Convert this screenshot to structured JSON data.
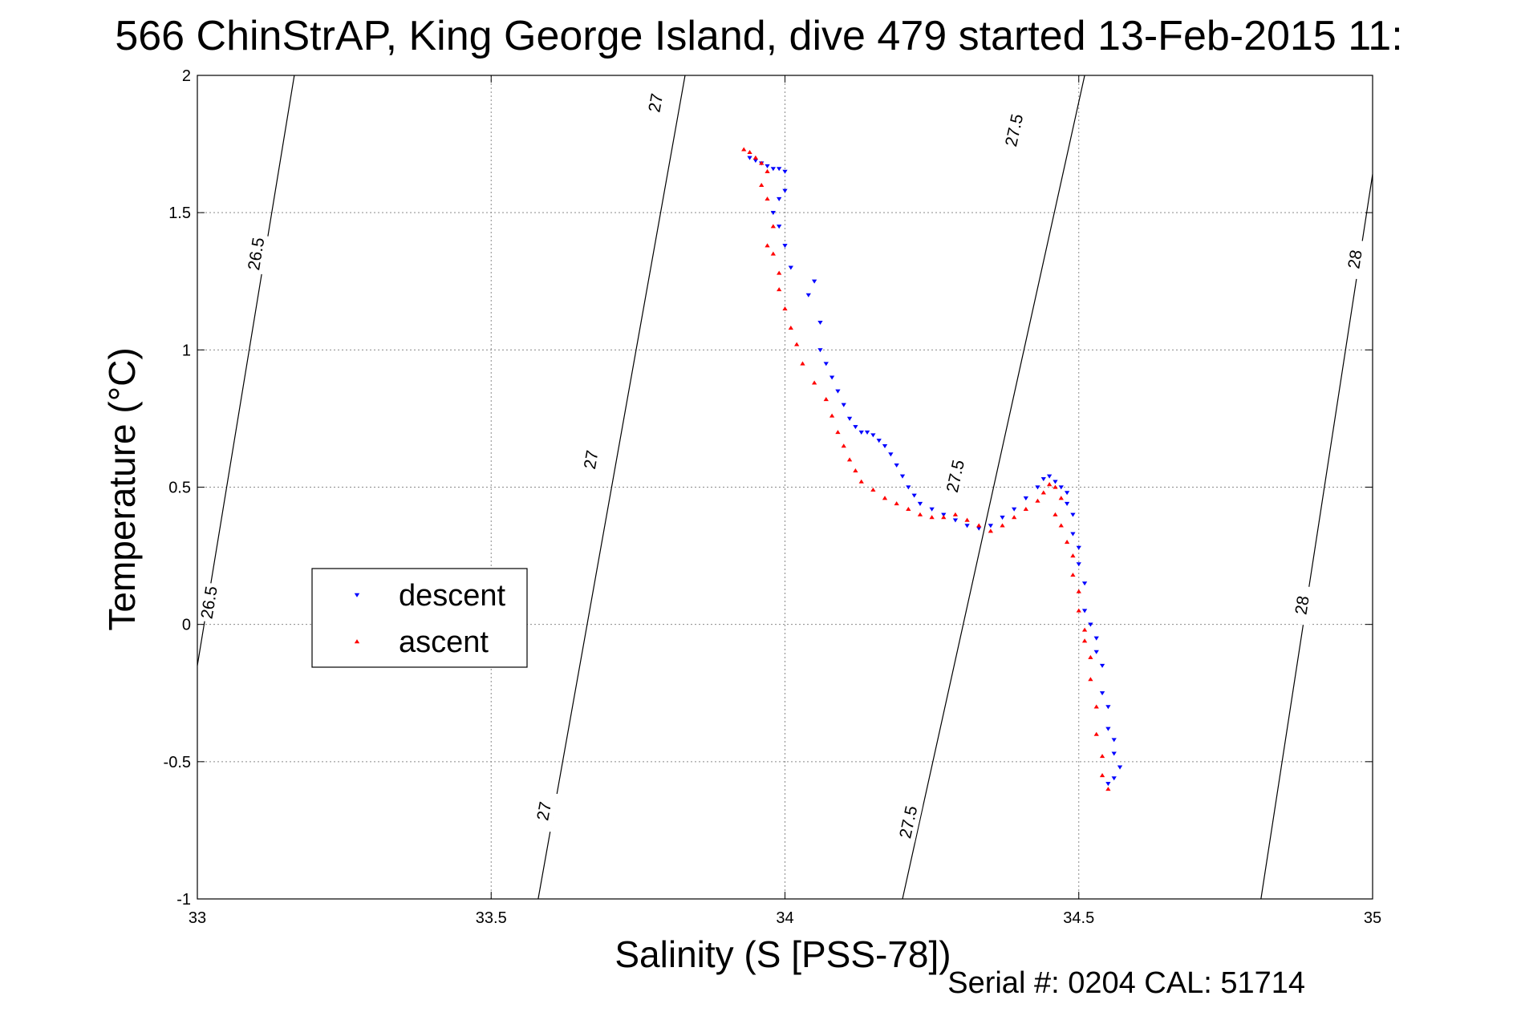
{
  "chart_data": {
    "type": "scatter",
    "title": "566 ChinStrAP, King George Island, dive 479 started 13-Feb-2015 11:",
    "xlabel": "Salinity (S [PSS-78])",
    "ylabel": "Temperature (°C)",
    "xlim": [
      33,
      35
    ],
    "ylim": [
      -1,
      2
    ],
    "x_ticks": [
      "33",
      "33.5",
      "34",
      "34.5",
      "35"
    ],
    "y_ticks": [
      "-1",
      "-0.5",
      "0",
      "0.5",
      "1",
      "1.5",
      "2"
    ],
    "grid": true,
    "legend_position": "middle-left",
    "footer": "Serial #: 0204  CAL: 51714",
    "density_contours": [
      {
        "label": "26.5",
        "x": [
          33.0,
          33.165
        ],
        "y": [
          -0.15,
          2.0
        ],
        "label_positions": [
          [
            33.02,
            0.08
          ],
          [
            33.1,
            1.35
          ]
        ]
      },
      {
        "label": "27",
        "x": [
          33.58,
          33.83
        ],
        "y": [
          -1.0,
          2.0
        ],
        "label_positions": [
          [
            33.59,
            -0.68
          ],
          [
            33.67,
            0.6
          ],
          [
            33.78,
            1.9
          ]
        ]
      },
      {
        "label": "27.5",
        "x": [
          34.2,
          34.51
        ],
        "y": [
          -1.0,
          2.0
        ],
        "label_positions": [
          [
            34.21,
            -0.72
          ],
          [
            34.29,
            0.54
          ],
          [
            34.39,
            1.8
          ]
        ]
      },
      {
        "label": "28",
        "x": [
          34.81,
          35.0
        ],
        "y": [
          -1.0,
          1.64
        ],
        "label_positions": [
          [
            34.88,
            0.07
          ],
          [
            34.97,
            1.33
          ]
        ]
      }
    ],
    "series": [
      {
        "name": "descent",
        "color": "#0000ff",
        "marker": "triangle-down",
        "x": [
          33.94,
          33.95,
          33.96,
          33.97,
          33.98,
          33.99,
          34.0,
          34.0,
          33.99,
          33.98,
          33.99,
          34.0,
          34.01,
          34.04,
          34.05,
          34.06,
          34.06,
          34.07,
          34.08,
          34.09,
          34.1,
          34.11,
          34.12,
          34.13,
          34.14,
          34.15,
          34.16,
          34.17,
          34.18,
          34.19,
          34.2,
          34.21,
          34.22,
          34.23,
          34.25,
          34.27,
          34.29,
          34.31,
          34.33,
          34.35,
          34.37,
          34.39,
          34.41,
          34.43,
          34.44,
          34.45,
          34.46,
          34.47,
          34.48,
          34.48,
          34.49,
          34.49,
          34.5,
          34.5,
          34.51,
          34.51,
          34.52,
          34.53,
          34.53,
          34.54,
          34.54,
          34.55,
          34.55,
          34.56,
          34.56,
          34.57,
          34.56,
          34.55
        ],
        "y": [
          1.7,
          1.69,
          1.68,
          1.67,
          1.66,
          1.66,
          1.65,
          1.58,
          1.55,
          1.5,
          1.45,
          1.38,
          1.3,
          1.2,
          1.25,
          1.1,
          1.0,
          0.95,
          0.9,
          0.85,
          0.8,
          0.75,
          0.72,
          0.7,
          0.7,
          0.69,
          0.67,
          0.65,
          0.62,
          0.58,
          0.54,
          0.5,
          0.47,
          0.44,
          0.42,
          0.4,
          0.38,
          0.36,
          0.35,
          0.36,
          0.39,
          0.42,
          0.46,
          0.5,
          0.53,
          0.54,
          0.52,
          0.5,
          0.48,
          0.44,
          0.4,
          0.33,
          0.28,
          0.22,
          0.15,
          0.05,
          0.0,
          -0.05,
          -0.1,
          -0.15,
          -0.25,
          -0.3,
          -0.38,
          -0.42,
          -0.47,
          -0.52,
          -0.56,
          -0.58
        ]
      },
      {
        "name": "ascent",
        "color": "#ff0000",
        "marker": "triangle-up",
        "x": [
          33.93,
          33.94,
          33.95,
          33.96,
          33.97,
          33.96,
          33.97,
          33.98,
          33.97,
          33.98,
          33.99,
          33.99,
          34.0,
          34.01,
          34.02,
          34.03,
          34.05,
          34.07,
          34.08,
          34.09,
          34.1,
          34.11,
          34.12,
          34.13,
          34.15,
          34.17,
          34.19,
          34.21,
          34.23,
          34.25,
          34.27,
          34.29,
          34.31,
          34.33,
          34.35,
          34.37,
          34.39,
          34.41,
          34.43,
          34.44,
          34.45,
          34.46,
          34.47,
          34.46,
          34.47,
          34.48,
          34.49,
          34.49,
          34.5,
          34.5,
          34.51,
          34.51,
          34.52,
          34.52,
          34.53,
          34.53,
          34.54,
          34.54,
          34.55
        ],
        "y": [
          1.73,
          1.72,
          1.7,
          1.68,
          1.65,
          1.6,
          1.55,
          1.45,
          1.38,
          1.35,
          1.28,
          1.22,
          1.15,
          1.08,
          1.02,
          0.95,
          0.88,
          0.82,
          0.76,
          0.7,
          0.65,
          0.6,
          0.56,
          0.52,
          0.49,
          0.46,
          0.44,
          0.42,
          0.4,
          0.39,
          0.39,
          0.4,
          0.38,
          0.36,
          0.34,
          0.36,
          0.39,
          0.42,
          0.45,
          0.48,
          0.51,
          0.5,
          0.46,
          0.4,
          0.36,
          0.3,
          0.25,
          0.18,
          0.12,
          0.05,
          -0.02,
          -0.06,
          -0.12,
          -0.2,
          -0.3,
          -0.4,
          -0.48,
          -0.55,
          -0.6
        ]
      }
    ]
  }
}
